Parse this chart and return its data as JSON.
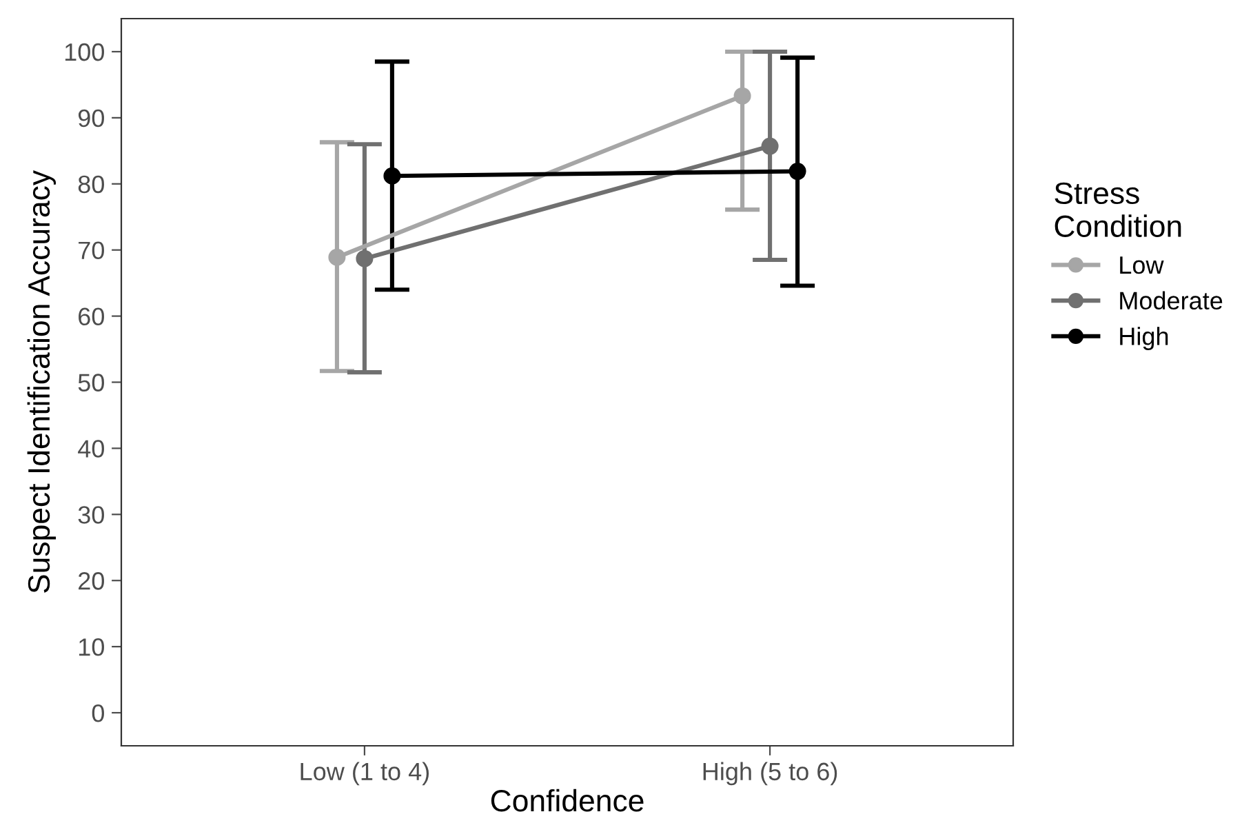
{
  "chart_data": {
    "type": "line",
    "xlabel": "Confidence",
    "ylabel": "Suspect Identification Accuracy",
    "legend_title": "Stress\nCondition",
    "categories": [
      "Low (1 to 4)",
      "High (5 to 6)"
    ],
    "series": [
      {
        "name": "Low",
        "color": "#a6a6a6",
        "values": [
          68.9,
          93.3
        ],
        "errors": [
          [
            51.7,
            86.3
          ],
          [
            76.1,
            100
          ]
        ]
      },
      {
        "name": "Moderate",
        "color": "#707070",
        "values": [
          68.7,
          85.7
        ],
        "errors": [
          [
            51.5,
            86.0
          ],
          [
            68.5,
            100
          ]
        ]
      },
      {
        "name": "High",
        "color": "#000000",
        "values": [
          81.2,
          81.9
        ],
        "errors": [
          [
            64.0,
            98.5
          ],
          [
            64.6,
            99.1
          ]
        ]
      }
    ],
    "ylim": [
      -5,
      105
    ],
    "yticks": [
      0,
      10,
      20,
      30,
      40,
      50,
      60,
      70,
      80,
      90,
      100
    ],
    "grid": false,
    "legend": "right",
    "marker": "circle",
    "line_style": "solid"
  }
}
